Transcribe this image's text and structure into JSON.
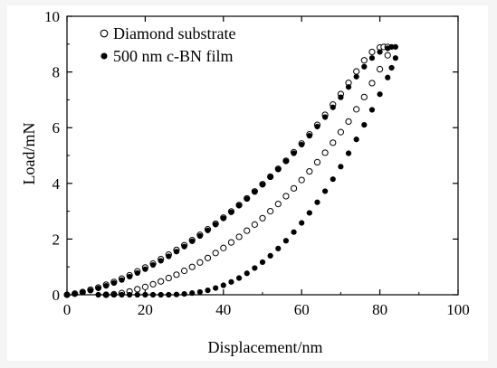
{
  "chart_data": {
    "type": "scatter",
    "title": "",
    "xlabel": "Displacement/nm",
    "ylabel": "Load/mN",
    "xlim": [
      0,
      100
    ],
    "ylim": [
      0,
      10
    ],
    "x_ticks": [
      0,
      20,
      40,
      60,
      80,
      100
    ],
    "y_ticks": [
      0,
      2,
      4,
      6,
      8,
      10
    ],
    "grid": false,
    "legend_position": "top-left",
    "series": [
      {
        "name": "Diamond substrate",
        "marker": "open-circle",
        "color": "#000000",
        "x": [
          0,
          2,
          4,
          6,
          8,
          10,
          12,
          14,
          16,
          18,
          20,
          22,
          24,
          26,
          28,
          30,
          32,
          34,
          36,
          38,
          40,
          42,
          44,
          46,
          48,
          50,
          52,
          54,
          56,
          58,
          60,
          62,
          64,
          66,
          68,
          70,
          72,
          74,
          76,
          78,
          80,
          81,
          82,
          82,
          80,
          78,
          76,
          74,
          72,
          70,
          68,
          66,
          64,
          62,
          60,
          58,
          56,
          54,
          52,
          50,
          48,
          46,
          44,
          42,
          40,
          38,
          36,
          34,
          32,
          30,
          28,
          26,
          24,
          22,
          20,
          18,
          16,
          14,
          12,
          10
        ],
        "y": [
          0.0,
          0.04,
          0.1,
          0.18,
          0.26,
          0.36,
          0.46,
          0.58,
          0.7,
          0.84,
          0.98,
          1.12,
          1.28,
          1.44,
          1.61,
          1.78,
          1.96,
          2.15,
          2.35,
          2.55,
          2.77,
          2.99,
          3.22,
          3.46,
          3.71,
          3.97,
          4.24,
          4.52,
          4.81,
          5.12,
          5.43,
          5.76,
          6.1,
          6.46,
          6.83,
          7.21,
          7.61,
          8.02,
          8.42,
          8.72,
          8.88,
          8.9,
          8.9,
          8.6,
          8.1,
          7.6,
          7.1,
          6.66,
          6.22,
          5.84,
          5.46,
          5.1,
          4.76,
          4.43,
          4.12,
          3.82,
          3.54,
          3.26,
          3.0,
          2.75,
          2.52,
          2.3,
          2.08,
          1.88,
          1.68,
          1.5,
          1.32,
          1.16,
          1.0,
          0.86,
          0.72,
          0.6,
          0.48,
          0.38,
          0.28,
          0.2,
          0.12,
          0.06,
          0.02,
          0.0
        ]
      },
      {
        "name": "500 nm c-BN film",
        "marker": "filled-circle",
        "color": "#000000",
        "x": [
          0,
          2,
          4,
          6,
          8,
          10,
          12,
          14,
          16,
          18,
          20,
          22,
          24,
          26,
          28,
          30,
          32,
          34,
          36,
          38,
          40,
          42,
          44,
          46,
          48,
          50,
          52,
          54,
          56,
          58,
          60,
          62,
          64,
          66,
          68,
          70,
          72,
          74,
          76,
          78,
          80,
          82,
          83,
          84,
          84,
          83,
          82,
          80,
          78,
          76,
          74,
          72,
          70,
          68,
          66,
          64,
          62,
          60,
          58,
          56,
          54,
          52,
          50,
          48,
          46,
          44,
          42,
          40,
          38,
          36,
          34,
          32,
          30,
          28,
          26,
          24,
          22,
          20,
          18,
          16,
          14,
          12,
          10,
          8
        ],
        "y": [
          0.0,
          0.03,
          0.08,
          0.15,
          0.23,
          0.32,
          0.42,
          0.53,
          0.65,
          0.78,
          0.92,
          1.07,
          1.22,
          1.38,
          1.55,
          1.73,
          1.92,
          2.11,
          2.31,
          2.52,
          2.74,
          2.96,
          3.2,
          3.44,
          3.69,
          3.95,
          4.22,
          4.5,
          4.79,
          5.08,
          5.39,
          5.71,
          6.04,
          6.38,
          6.73,
          7.09,
          7.46,
          7.83,
          8.19,
          8.5,
          8.72,
          8.85,
          8.9,
          8.9,
          8.5,
          8.15,
          7.8,
          7.2,
          6.64,
          6.1,
          5.58,
          5.08,
          4.6,
          4.15,
          3.72,
          3.32,
          2.94,
          2.58,
          2.25,
          1.94,
          1.66,
          1.4,
          1.17,
          0.96,
          0.77,
          0.6,
          0.46,
          0.34,
          0.24,
          0.16,
          0.1,
          0.06,
          0.03,
          0.01,
          0.0,
          0.0,
          0.0,
          0.0,
          0.0,
          0.0,
          0.0,
          0.0,
          0.0,
          0.0
        ]
      }
    ]
  }
}
